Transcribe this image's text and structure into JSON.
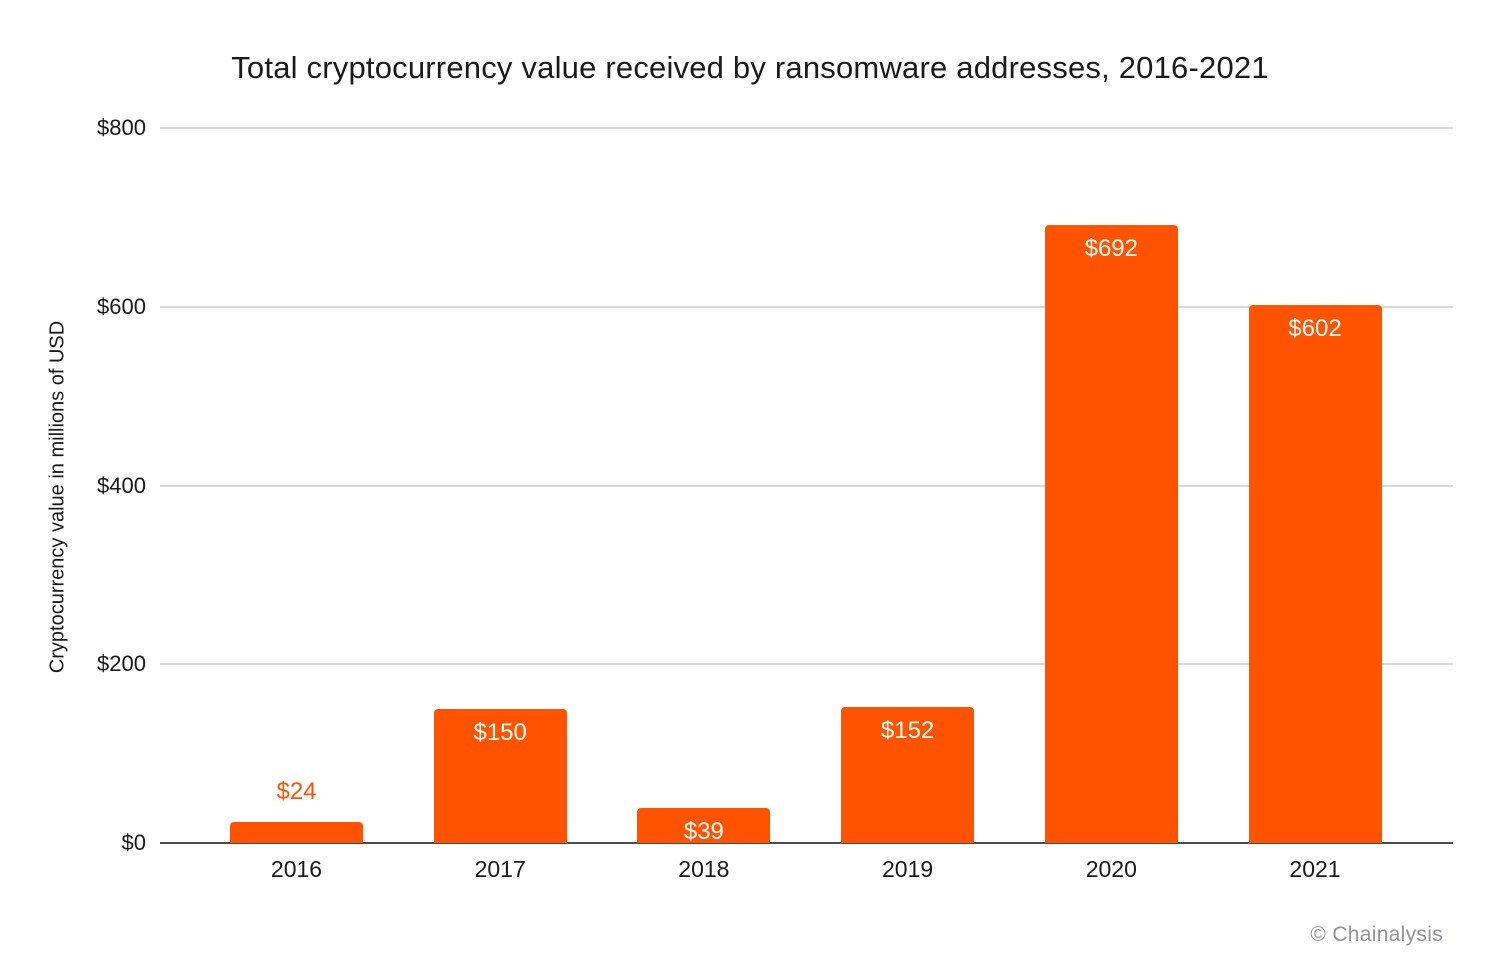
{
  "page": {
    "credit": "© Chainalysis"
  },
  "chart_data": {
    "type": "bar",
    "title": "Total cryptocurrency value received by ransomware addresses, 2016-2021",
    "categories": [
      "2016",
      "2017",
      "2018",
      "2019",
      "2020",
      "2021"
    ],
    "values": [
      24,
      150,
      39,
      152,
      692,
      602
    ],
    "bar_labels": [
      "$24",
      "$150",
      "$39",
      "$152",
      "$692",
      "$602"
    ],
    "bar_label_placement": [
      "above",
      "inside",
      "inside",
      "inside",
      "inside",
      "inside"
    ],
    "xlabel": "",
    "ylabel": "Cryptocurrency value in millions of USD",
    "ylim": [
      0,
      800
    ],
    "yticks": [
      0,
      200,
      400,
      600,
      800
    ],
    "ytick_labels": [
      "$0",
      "$200",
      "$400",
      "$600",
      "$800"
    ],
    "grid": true,
    "legend": false,
    "colors": {
      "bar": "#FF5300",
      "grid_line": "#D9D9D9",
      "axis_line": "#4A4A4A",
      "text": "#1A1A1A",
      "bar_label_inside": "#FFFFFF",
      "bar_label_above": "#FF5300",
      "credit": "#92939B",
      "background": "#FFFFFF"
    }
  }
}
